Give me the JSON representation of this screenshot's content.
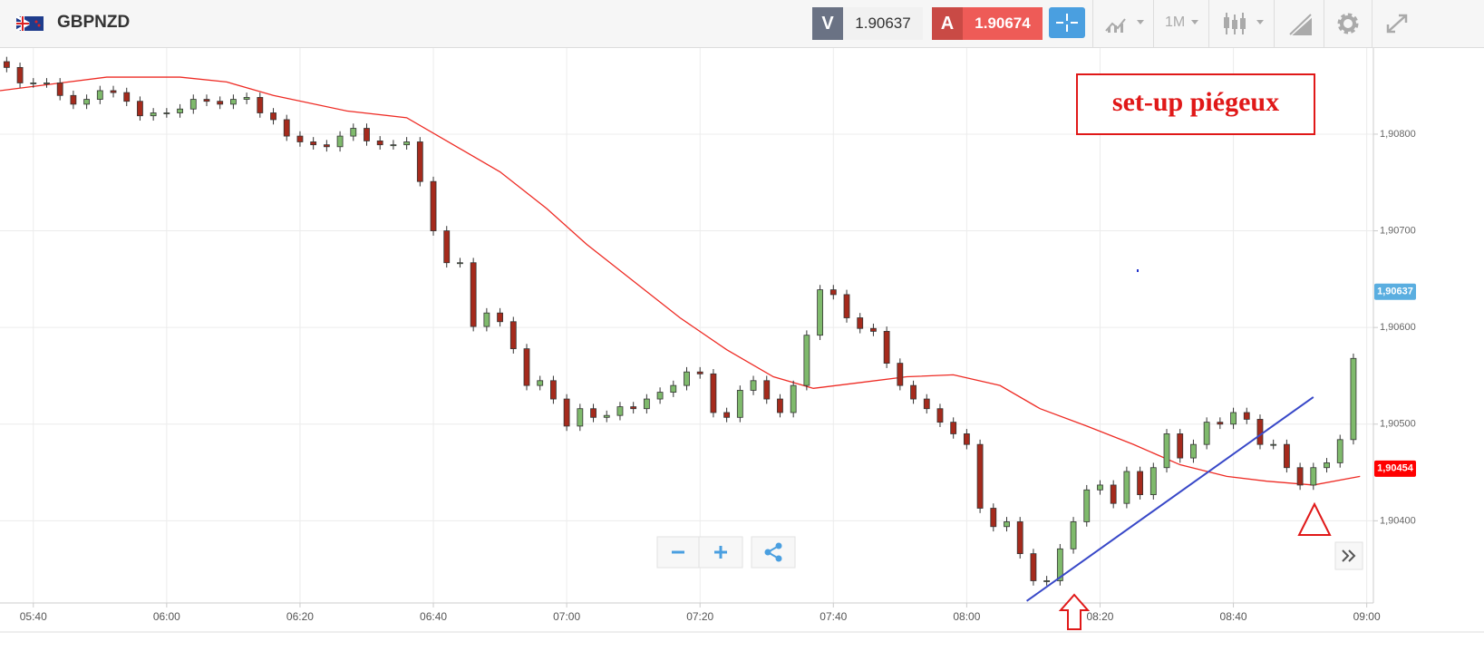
{
  "header": {
    "symbol": "GBPNZD",
    "bid_label": "V",
    "bid": 1.90637,
    "ask_label": "A",
    "ask": 1.90674,
    "timeframe": "1M"
  },
  "chart_data": {
    "type": "candlestick",
    "annotation": "set-up piégeux",
    "x": [
      336,
      338,
      340,
      342,
      344,
      346,
      348,
      350,
      352,
      354,
      356,
      358,
      360,
      362,
      364,
      366,
      368,
      370,
      372,
      374,
      376,
      378,
      380,
      382,
      384,
      386,
      388,
      390,
      392,
      394,
      396,
      398,
      400,
      402,
      404,
      406,
      408,
      410,
      412,
      414,
      416,
      418,
      420,
      422,
      424,
      426,
      428,
      430,
      432,
      434,
      436,
      438,
      440,
      442,
      444,
      446,
      448,
      450,
      452,
      454,
      456,
      458,
      460,
      462,
      464,
      466,
      468,
      470,
      472,
      474,
      476,
      478,
      480,
      482,
      484,
      486,
      488,
      490,
      492,
      494,
      496,
      498,
      500,
      502,
      504,
      506,
      508,
      510,
      512,
      514,
      516,
      518,
      520,
      522,
      524,
      526,
      528,
      530,
      532,
      534,
      536,
      538
    ],
    "open": [
      1.90875,
      1.90869,
      1.90853,
      1.90853,
      1.90853,
      1.9084,
      1.90831,
      1.90836,
      1.90845,
      1.90843,
      1.90834,
      1.90819,
      1.90822,
      1.90822,
      1.90826,
      1.90836,
      1.90834,
      1.90831,
      1.90836,
      1.90838,
      1.90822,
      1.90815,
      1.90798,
      1.90792,
      1.90789,
      1.90787,
      1.90798,
      1.90806,
      1.90793,
      1.90789,
      1.90789,
      1.90792,
      1.90751,
      1.907,
      1.90667,
      1.90667,
      1.90601,
      1.90615,
      1.90606,
      1.90578,
      1.9054,
      1.90545,
      1.90526,
      1.90498,
      1.90516,
      1.90507,
      1.90509,
      1.90518,
      1.90516,
      1.90526,
      1.90533,
      1.9054,
      1.90554,
      1.90552,
      1.90512,
      1.90507,
      1.90535,
      1.90545,
      1.90526,
      1.90512,
      1.9054,
      1.90592,
      1.90639,
      1.90634,
      1.9061,
      1.90599,
      1.90596,
      1.90563,
      1.9054,
      1.90526,
      1.90516,
      1.90502,
      1.9049,
      1.90479,
      1.90413,
      1.90394,
      1.90399,
      1.90366,
      1.90338,
      1.90338,
      1.90371,
      1.90399,
      1.90432,
      1.90437,
      1.90418,
      1.90451,
      1.90427,
      1.90455,
      1.9049,
      1.90465,
      1.90479,
      1.90502,
      1.905,
      1.90512,
      1.90505,
      1.90479,
      1.90479,
      1.90455,
      1.90437,
      1.90455,
      1.9046,
      1.90484
    ],
    "high": [
      1.9088,
      1.90874,
      1.90858,
      1.90858,
      1.90858,
      1.90845,
      1.90841,
      1.9085,
      1.9085,
      1.90848,
      1.90839,
      1.90827,
      1.90827,
      1.90831,
      1.90841,
      1.90841,
      1.90839,
      1.90841,
      1.90843,
      1.90843,
      1.90827,
      1.9082,
      1.90803,
      1.90797,
      1.90794,
      1.90803,
      1.90811,
      1.90811,
      1.90798,
      1.90794,
      1.90797,
      1.90797,
      1.90756,
      1.90705,
      1.90672,
      1.90672,
      1.9062,
      1.9062,
      1.90611,
      1.90583,
      1.9055,
      1.9055,
      1.90531,
      1.90521,
      1.90521,
      1.90514,
      1.90523,
      1.90523,
      1.90531,
      1.90538,
      1.90545,
      1.90559,
      1.90559,
      1.90557,
      1.90517,
      1.9054,
      1.9055,
      1.9055,
      1.90531,
      1.90545,
      1.90597,
      1.90644,
      1.90644,
      1.90639,
      1.90615,
      1.90604,
      1.90601,
      1.90568,
      1.90545,
      1.90531,
      1.90521,
      1.90507,
      1.90495,
      1.90484,
      1.90418,
      1.90404,
      1.90404,
      1.90371,
      1.90343,
      1.90376,
      1.90404,
      1.90437,
      1.90442,
      1.90442,
      1.90456,
      1.90456,
      1.9046,
      1.90495,
      1.90495,
      1.90484,
      1.90507,
      1.90507,
      1.90517,
      1.90517,
      1.9051,
      1.90484,
      1.90484,
      1.9046,
      1.9046,
      1.90465,
      1.90489,
      1.90573
    ],
    "low": [
      1.90864,
      1.90848,
      1.90848,
      1.90848,
      1.90835,
      1.90826,
      1.90826,
      1.90831,
      1.90838,
      1.90829,
      1.90814,
      1.90814,
      1.90817,
      1.90817,
      1.90821,
      1.90829,
      1.90826,
      1.90826,
      1.90831,
      1.90817,
      1.9081,
      1.90793,
      1.90787,
      1.90784,
      1.90782,
      1.90782,
      1.90793,
      1.90788,
      1.90784,
      1.90784,
      1.90784,
      1.90746,
      1.90695,
      1.90662,
      1.90662,
      1.90596,
      1.90596,
      1.90601,
      1.90573,
      1.90535,
      1.90535,
      1.90521,
      1.90493,
      1.90493,
      1.90502,
      1.90502,
      1.90504,
      1.90511,
      1.90511,
      1.90521,
      1.90528,
      1.90535,
      1.90547,
      1.90507,
      1.90502,
      1.90502,
      1.9053,
      1.90521,
      1.90507,
      1.90507,
      1.90535,
      1.90587,
      1.90629,
      1.90605,
      1.90594,
      1.90591,
      1.90558,
      1.90535,
      1.90521,
      1.90511,
      1.90497,
      1.90485,
      1.90474,
      1.90408,
      1.90389,
      1.90389,
      1.90361,
      1.90333,
      1.90333,
      1.90333,
      1.90366,
      1.90394,
      1.90427,
      1.90413,
      1.90413,
      1.90422,
      1.90422,
      1.9045,
      1.9046,
      1.9046,
      1.90474,
      1.90495,
      1.90495,
      1.905,
      1.90474,
      1.90474,
      1.9045,
      1.90432,
      1.90432,
      1.9045,
      1.90455,
      1.90479
    ],
    "close": [
      1.90869,
      1.90853,
      1.90853,
      1.90853,
      1.9084,
      1.90831,
      1.90836,
      1.90845,
      1.90843,
      1.90834,
      1.90819,
      1.90822,
      1.90822,
      1.90826,
      1.90836,
      1.90834,
      1.90831,
      1.90836,
      1.90838,
      1.90822,
      1.90815,
      1.90798,
      1.90792,
      1.90789,
      1.90787,
      1.90798,
      1.90806,
      1.90793,
      1.90789,
      1.90789,
      1.90792,
      1.90751,
      1.907,
      1.90667,
      1.90667,
      1.90601,
      1.90615,
      1.90606,
      1.90578,
      1.9054,
      1.90545,
      1.90526,
      1.90498,
      1.90516,
      1.90507,
      1.90509,
      1.90518,
      1.90516,
      1.90526,
      1.90533,
      1.9054,
      1.90554,
      1.90552,
      1.90512,
      1.90507,
      1.90535,
      1.90545,
      1.90526,
      1.90512,
      1.9054,
      1.90592,
      1.90639,
      1.90634,
      1.9061,
      1.90599,
      1.90596,
      1.90563,
      1.9054,
      1.90526,
      1.90516,
      1.90502,
      1.9049,
      1.90479,
      1.90413,
      1.90394,
      1.90399,
      1.90366,
      1.90338,
      1.90338,
      1.90371,
      1.90399,
      1.90432,
      1.90437,
      1.90418,
      1.90451,
      1.90427,
      1.90455,
      1.9049,
      1.90465,
      1.90479,
      1.90502,
      1.905,
      1.90512,
      1.90505,
      1.90479,
      1.90479,
      1.90455,
      1.90437,
      1.90455,
      1.9046,
      1.90484,
      1.90568
    ],
    "up_color": "#7fba6c",
    "down_color": "#a52a1c",
    "ma": {
      "color": "#ee2b24",
      "x": [
        335,
        343,
        351,
        362,
        369,
        376,
        387,
        396,
        403,
        410,
        417,
        423,
        430,
        437,
        444,
        451,
        457,
        464,
        471,
        478,
        485,
        491,
        498,
        505,
        512,
        519,
        525,
        532,
        539
      ],
      "values": [
        1.90845,
        1.90852,
        1.90859,
        1.90859,
        1.90854,
        1.9084,
        1.90824,
        1.90817,
        1.90789,
        1.90761,
        1.90723,
        1.90686,
        1.90648,
        1.9061,
        1.90577,
        1.90549,
        1.90537,
        1.90543,
        1.90549,
        1.90551,
        1.9054,
        1.90516,
        1.90498,
        1.90479,
        1.90458,
        1.90446,
        1.90441,
        1.90437,
        1.90446
      ]
    },
    "trendline": {
      "color": "#3848c8",
      "x": [
        489,
        532
      ],
      "values": [
        1.90317,
        1.90528
      ]
    },
    "xlim": [
      335,
      541
    ],
    "xticks": [
      {
        "value": 340,
        "label": "05:40"
      },
      {
        "value": 360,
        "label": "06:00"
      },
      {
        "value": 380,
        "label": "06:20"
      },
      {
        "value": 400,
        "label": "06:40"
      },
      {
        "value": 420,
        "label": "07:00"
      },
      {
        "value": 440,
        "label": "07:20"
      },
      {
        "value": 460,
        "label": "07:40"
      },
      {
        "value": 480,
        "label": "08:00"
      },
      {
        "value": 500,
        "label": "08:20"
      },
      {
        "value": 520,
        "label": "08:40"
      },
      {
        "value": 540,
        "label": "09:00"
      }
    ],
    "ylim": [
      1.90315,
      1.9089
    ],
    "yticks": [
      {
        "value": 1.904,
        "label": "1,90400"
      },
      {
        "value": 1.905,
        "label": "1,90500"
      },
      {
        "value": 1.906,
        "label": "1,90600"
      },
      {
        "value": 1.907,
        "label": "1,90700"
      },
      {
        "value": 1.908,
        "label": "1,90800"
      }
    ],
    "price_tags": [
      {
        "value": 1.90637,
        "label": "1,90637",
        "color": "#5aaee0"
      },
      {
        "value": 1.90454,
        "label": "1,90454",
        "color": "#ff0000"
      }
    ],
    "grid": true
  }
}
